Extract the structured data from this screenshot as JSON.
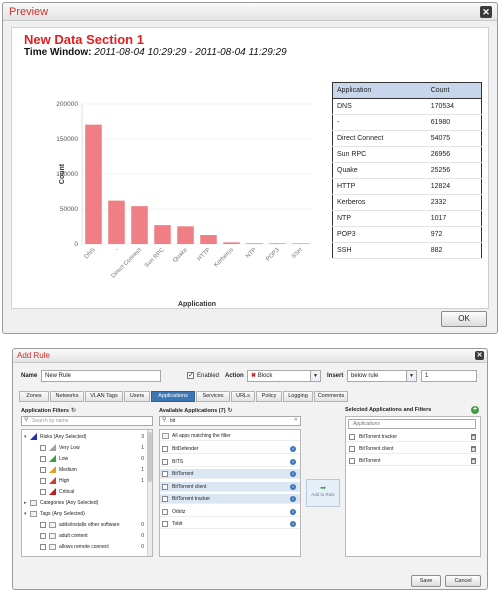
{
  "preview": {
    "title": "Preview",
    "section_title": "New Data Section 1",
    "time_window_label": "Time Window:",
    "time_window_value": "2011-08-04 10:29:29 - 2011-08-04 11:29:29",
    "ok_label": "OK",
    "table": {
      "headers": [
        "Application",
        "Count"
      ],
      "rows": [
        [
          "DNS",
          "170534"
        ],
        [
          "-",
          "61980"
        ],
        [
          "Direct Connect",
          "54075"
        ],
        [
          "Sun RPC",
          "26956"
        ],
        [
          "Quake",
          "25256"
        ],
        [
          "HTTP",
          "12824"
        ],
        [
          "Kerberos",
          "2332"
        ],
        [
          "NTP",
          "1017"
        ],
        [
          "POP3",
          "972"
        ],
        [
          "SSH",
          "882"
        ]
      ]
    }
  },
  "chart_data": {
    "type": "bar",
    "categories": [
      "DNS",
      "-",
      "Direct Connect",
      "Sun RPC",
      "Quake",
      "HTTP",
      "Kerberos",
      "NTP",
      "POP3",
      "SSH"
    ],
    "values": [
      170534,
      61980,
      54075,
      26956,
      25256,
      12824,
      2332,
      1017,
      972,
      882
    ],
    "xlabel": "Application",
    "ylabel": "Count",
    "ylim": [
      0,
      200000
    ],
    "yticks": [
      "0",
      "50000",
      "100000",
      "150000",
      "200000"
    ],
    "bar_color": "#f07f85",
    "grid": true
  },
  "rule": {
    "title": "Add Rule",
    "name_label": "Name",
    "name_value": "New Rule",
    "enabled_label": "Enabled",
    "action_label": "Action",
    "action_value": "Block",
    "insert_label": "Insert",
    "insert_value": "below rule",
    "insert_number": "1",
    "tabs": [
      "Zones",
      "Networks",
      "VLAN Tags",
      "Users",
      "Applications",
      "Services",
      "URLs",
      "Policy",
      "Logging",
      "Comments"
    ],
    "active_tab": "Applications",
    "filters_head": "Application Filters",
    "filters_search_placeholder": "Search by name",
    "filters": [
      {
        "label": "Risks (Any Selected)",
        "count": "3"
      },
      {
        "label": "Very Low",
        "count": "1"
      },
      {
        "label": "Low",
        "count": "0"
      },
      {
        "label": "Medium",
        "count": "1"
      },
      {
        "label": "High",
        "count": "1"
      },
      {
        "label": "Critical",
        "count": ""
      },
      {
        "label": "Categories (Any Selected)",
        "count": ""
      },
      {
        "label": "Tags (Any Selected)",
        "count": ""
      },
      {
        "label": "adds/installs other software",
        "count": "0"
      },
      {
        "label": "adult content",
        "count": "0"
      },
      {
        "label": "allows remote connect",
        "count": "0"
      }
    ],
    "available_head": "Available Applications (7)",
    "available_search_value": "bit",
    "all_apps_label": "All apps matching the filter",
    "available_apps": [
      {
        "label": "BitDefender",
        "selected": false
      },
      {
        "label": "BITS",
        "selected": false
      },
      {
        "label": "BitTorrent",
        "selected": true
      },
      {
        "label": "BitTorrent client",
        "selected": true
      },
      {
        "label": "BitTorrent tracker",
        "selected": true
      },
      {
        "label": "Orbitz",
        "selected": false
      },
      {
        "label": "Tobit",
        "selected": false
      }
    ],
    "add_to_rule_label": "Add to Rule",
    "selected_head": "Selected Applications and Filters",
    "selected_subhead": "Applications",
    "selected_apps": [
      "BitTorrent tracker",
      "BitTorrent client",
      "BitTorrent"
    ],
    "save_label": "Save",
    "cancel_label": "Cancel"
  }
}
